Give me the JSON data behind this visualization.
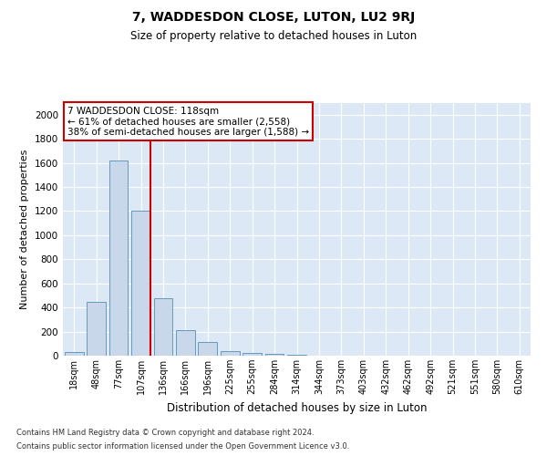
{
  "title": "7, WADDESDON CLOSE, LUTON, LU2 9RJ",
  "subtitle": "Size of property relative to detached houses in Luton",
  "xlabel": "Distribution of detached houses by size in Luton",
  "ylabel": "Number of detached properties",
  "footer1": "Contains HM Land Registry data © Crown copyright and database right 2024.",
  "footer2": "Contains public sector information licensed under the Open Government Licence v3.0.",
  "bar_color": "#c8d8ea",
  "bar_edge_color": "#6699bb",
  "vline_color": "#cc0000",
  "vline_x_index": 3,
  "annotation_text": "7 WADDESDON CLOSE: 118sqm\n← 61% of detached houses are smaller (2,558)\n38% of semi-detached houses are larger (1,588) →",
  "annotation_box_edgecolor": "#cc0000",
  "categories": [
    "18sqm",
    "48sqm",
    "77sqm",
    "107sqm",
    "136sqm",
    "166sqm",
    "196sqm",
    "225sqm",
    "255sqm",
    "284sqm",
    "314sqm",
    "344sqm",
    "373sqm",
    "403sqm",
    "432sqm",
    "462sqm",
    "492sqm",
    "521sqm",
    "551sqm",
    "580sqm",
    "610sqm"
  ],
  "values": [
    30,
    450,
    1620,
    1200,
    480,
    210,
    110,
    40,
    25,
    15,
    5,
    0,
    0,
    0,
    0,
    0,
    0,
    0,
    0,
    0,
    0
  ],
  "ylim": [
    0,
    2100
  ],
  "yticks": [
    0,
    200,
    400,
    600,
    800,
    1000,
    1200,
    1400,
    1600,
    1800,
    2000
  ],
  "fig_bg": "#ffffff",
  "plot_bg": "#dce8f5",
  "grid_color": "#ffffff",
  "title_fontsize": 10,
  "subtitle_fontsize": 8.5,
  "ylabel_fontsize": 8,
  "xlabel_fontsize": 8.5,
  "tick_fontsize": 7.5,
  "xtick_fontsize": 7
}
